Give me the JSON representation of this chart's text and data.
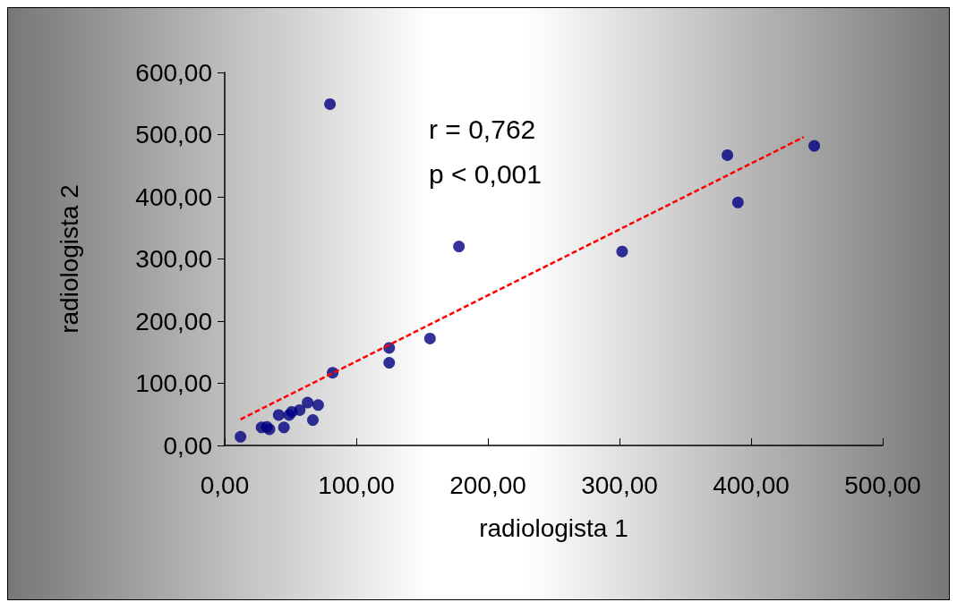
{
  "chart_data": {
    "type": "scatter",
    "xlabel": "radiologista 1",
    "ylabel": "radiologista 2",
    "annotations": [
      "r = 0,762",
      "p < 0,001"
    ],
    "xlim": [
      0,
      500
    ],
    "ylim": [
      0,
      600
    ],
    "xticks": [
      {
        "value": 0,
        "label": "0,00"
      },
      {
        "value": 100,
        "label": "100,00"
      },
      {
        "value": 200,
        "label": "200,00"
      },
      {
        "value": 300,
        "label": "300,00"
      },
      {
        "value": 400,
        "label": "400,00"
      },
      {
        "value": 500,
        "label": "500,00"
      }
    ],
    "yticks": [
      {
        "value": 0,
        "label": "0,00"
      },
      {
        "value": 100,
        "label": "100,00"
      },
      {
        "value": 200,
        "label": "200,00"
      },
      {
        "value": 300,
        "label": "300,00"
      },
      {
        "value": 400,
        "label": "400,00"
      },
      {
        "value": 500,
        "label": "500,00"
      },
      {
        "value": 600,
        "label": "600,00"
      }
    ],
    "grid": false,
    "marker": "circle",
    "series": [
      {
        "color": "#000080",
        "x": [
          12,
          28,
          34,
          32,
          45,
          41,
          49,
          51,
          57,
          63,
          71,
          67,
          82,
          125,
          125,
          156,
          178,
          302,
          382,
          390,
          448,
          80
        ],
        "values": [
          14,
          29,
          26,
          30,
          29,
          49,
          49,
          54,
          57,
          69,
          65,
          41,
          117,
          157,
          133,
          172,
          320,
          312,
          467,
          391,
          482,
          549
        ]
      },
      {
        "type": "line",
        "color": "#ff0000",
        "line_style": "dashed",
        "marker": "none",
        "x": [
          12,
          440
        ],
        "values": [
          42,
          496
        ]
      }
    ]
  }
}
